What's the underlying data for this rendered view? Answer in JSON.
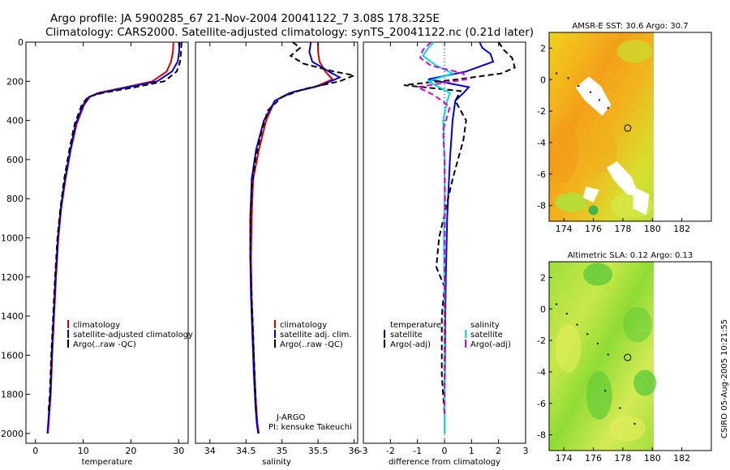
{
  "header": {
    "title_line1": "Argo profile: JA 5900285_67 21-Nov-2004 20041122_7 3.08S 178.325E",
    "title_line2": "Climatology: CARS2000. Satellite-adjusted climatology: synTS_20041122.nc (0.21d later)"
  },
  "side_label": "CSIRO 05-Aug-2005 10:21:55",
  "colors": {
    "climatology": "#dd0000",
    "satellite": "#0000dd",
    "argo": "#000000",
    "salinity_sat": "#00dddd",
    "salinity_argo": "#dd00dd",
    "land": "#ffffff"
  },
  "chart_data": [
    {
      "id": "temperature",
      "type": "line",
      "xlabel": "temperature",
      "ylabel": "",
      "xlim": [
        -2,
        32
      ],
      "ylim": [
        0,
        2050
      ],
      "y_inverted": true,
      "xticks": [
        0,
        10,
        20,
        30
      ],
      "xtick_labels": [
        "0",
        "10",
        "20",
        "30"
      ],
      "yticks": [
        0,
        200,
        400,
        600,
        800,
        1000,
        1200,
        1400,
        1600,
        1800,
        2000
      ],
      "ytick_labels": [
        "0",
        "200",
        "400",
        "600",
        "800",
        "1000",
        "1200",
        "1400",
        "1600",
        "1800",
        "2000"
      ],
      "legend": {
        "position": "bottom-center",
        "entries": [
          "climatology",
          "satellite-adjusted climatology",
          "Argo(..raw -QC)"
        ]
      },
      "series": [
        {
          "name": "climatology",
          "color": "#dd0000",
          "dash": "",
          "x": [
            28.9,
            28.8,
            28.4,
            27.5,
            24.5,
            19.0,
            13.0,
            11.4,
            10.2,
            8.6,
            7.4,
            6.3,
            5.4,
            4.8,
            4.3,
            3.9,
            3.5,
            3.2,
            2.9,
            2.6
          ],
          "y": [
            0,
            50,
            100,
            150,
            200,
            230,
            260,
            280,
            320,
            420,
            550,
            700,
            850,
            1000,
            1200,
            1400,
            1600,
            1800,
            1900,
            2000
          ]
        },
        {
          "name": "satellite-adjusted climatology",
          "color": "#0000dd",
          "dash": "",
          "x": [
            30.2,
            30.1,
            29.8,
            28.6,
            25.5,
            19.5,
            13.5,
            11.2,
            10.0,
            8.4,
            7.3,
            6.2,
            5.3,
            4.7,
            4.2,
            3.8,
            3.4,
            3.1,
            2.8,
            2.5
          ],
          "y": [
            0,
            50,
            100,
            150,
            200,
            230,
            260,
            280,
            320,
            420,
            550,
            700,
            850,
            1000,
            1200,
            1400,
            1600,
            1800,
            1900,
            2000
          ]
        },
        {
          "name": "Argo(..raw -QC)",
          "color": "#000000",
          "dash": "7,4",
          "x": [
            30.6,
            30.5,
            30.3,
            29.6,
            27.0,
            21.0,
            14.0,
            11.0,
            9.7,
            8.2,
            7.1,
            6.0,
            5.2,
            4.6,
            4.1,
            3.7,
            3.3,
            3.0,
            2.7
          ],
          "y": [
            0,
            50,
            100,
            150,
            200,
            230,
            260,
            280,
            320,
            420,
            550,
            700,
            850,
            1000,
            1200,
            1400,
            1600,
            1800,
            1900
          ]
        }
      ]
    },
    {
      "id": "salinity",
      "type": "line",
      "xlabel": "salinity",
      "xlim": [
        33.8,
        36.05
      ],
      "ylim": [
        0,
        2050
      ],
      "y_inverted": true,
      "xticks": [
        34,
        34.5,
        35,
        35.5,
        36
      ],
      "xtick_labels": [
        "34",
        "34.5",
        "35",
        "35.5",
        "36"
      ],
      "legend": {
        "position": "bottom-center",
        "entries": [
          "climatology",
          "satellite adj. clim.",
          "Argo(..raw -QC)"
        ]
      },
      "annotation": [
        "J-ARGO",
        "PI: kensuke Takeuchi"
      ],
      "series": [
        {
          "name": "climatology",
          "color": "#dd0000",
          "dash": "",
          "x": [
            35.5,
            35.5,
            35.52,
            35.6,
            35.7,
            35.45,
            35.1,
            34.9,
            34.78,
            34.68,
            34.6,
            34.58,
            34.57,
            34.58,
            34.6,
            34.62,
            34.64,
            34.66,
            34.68
          ],
          "y": [
            0,
            50,
            100,
            150,
            190,
            230,
            260,
            300,
            400,
            550,
            700,
            900,
            1100,
            1300,
            1500,
            1700,
            1850,
            1950,
            2000
          ]
        },
        {
          "name": "satellite adj. clim.",
          "color": "#0000dd",
          "dash": "",
          "x": [
            35.4,
            35.38,
            35.42,
            35.65,
            35.8,
            35.55,
            35.15,
            34.9,
            34.75,
            34.64,
            34.58,
            34.56,
            34.56,
            34.57,
            34.59,
            34.61,
            34.63,
            34.65,
            34.67
          ],
          "y": [
            0,
            50,
            100,
            150,
            180,
            220,
            255,
            300,
            400,
            550,
            700,
            900,
            1100,
            1300,
            1500,
            1700,
            1850,
            1950,
            2000
          ]
        },
        {
          "name": "Argo(..raw -QC)",
          "color": "#000000",
          "dash": "7,4",
          "x": [
            35.15,
            35.25,
            35.12,
            35.3,
            35.72,
            36.0,
            35.8,
            35.3,
            35.0,
            34.8,
            34.72,
            34.63,
            34.58,
            34.56,
            34.56,
            34.58,
            34.6,
            34.62,
            34.64
          ],
          "y": [
            0,
            30,
            70,
            110,
            150,
            170,
            200,
            240,
            280,
            350,
            450,
            600,
            750,
            900,
            1100,
            1300,
            1500,
            1700,
            1900
          ]
        }
      ]
    },
    {
      "id": "difference",
      "type": "line",
      "xlabel": "difference from climatology",
      "xlim": [
        -3,
        3
      ],
      "ylim": [
        0,
        2050
      ],
      "y_inverted": true,
      "xticks": [
        -3,
        -2,
        -1,
        0,
        1,
        2,
        3
      ],
      "xtick_labels": [
        "-3",
        "-2",
        "-1",
        "0",
        "1",
        "2",
        "3"
      ],
      "legend": {
        "position": "bottom",
        "left_title": "temperature",
        "right_title": "salinity",
        "left_entries": [
          "satellite",
          "Argo(-adj)"
        ],
        "right_entries": [
          "satellite",
          "Argo(-adj)"
        ]
      },
      "series": [
        {
          "name": "temperature satellite",
          "color": "#0000dd",
          "dash": "",
          "x": [
            1.3,
            1.4,
            1.7,
            1.8,
            0.8,
            -0.6,
            0.9,
            0.7,
            0.4,
            0.3,
            0.2,
            0.1,
            0.05,
            0.03,
            0.02,
            0,
            0,
            0
          ],
          "y": [
            0,
            30,
            60,
            100,
            150,
            190,
            230,
            260,
            300,
            400,
            600,
            900,
            1200,
            1400,
            1600,
            1800,
            1900,
            2000
          ]
        },
        {
          "name": "temperature Argo(-adj)",
          "color": "#000000",
          "dash": "7,4",
          "x": [
            2.0,
            2.2,
            2.5,
            2.6,
            2.1,
            0.5,
            -1.5,
            0.6,
            0.4,
            0.8,
            0.7,
            0.3,
            -0.2,
            -0.3,
            0.0,
            -0.1,
            -0.1,
            0.0
          ],
          "y": [
            0,
            40,
            80,
            130,
            160,
            190,
            220,
            250,
            300,
            400,
            500,
            700,
            1000,
            1150,
            1250,
            1400,
            1700,
            1900
          ]
        },
        {
          "name": "salinity satellite",
          "color": "#00dddd",
          "dash": "",
          "x": [
            -0.4,
            -0.6,
            -0.8,
            -0.3,
            0.3,
            -0.6,
            0.2,
            0.1,
            -0.05,
            0,
            0,
            -0.02,
            0,
            0,
            0
          ],
          "y": [
            0,
            30,
            70,
            120,
            160,
            200,
            260,
            300,
            400,
            600,
            800,
            1000,
            1400,
            1800,
            2000
          ]
        },
        {
          "name": "salinity Argo(-adj)",
          "color": "#dd00dd",
          "dash": "7,4",
          "x": [
            -0.5,
            -0.8,
            -0.9,
            -0.5,
            0.7,
            0.8,
            -1.0,
            -0.4,
            0.2,
            -0.05,
            0,
            0.02,
            0,
            0,
            0
          ],
          "y": [
            0,
            40,
            80,
            120,
            160,
            190,
            230,
            270,
            330,
            450,
            600,
            800,
            1100,
            1500,
            1900
          ]
        }
      ]
    },
    {
      "id": "sst_map",
      "type": "heatmap",
      "title": "AMSR-E SST: 30.6 Argo: 30.7",
      "xlim": [
        173,
        184
      ],
      "ylim": [
        -9,
        3
      ],
      "xticks": [
        174,
        176,
        178,
        180,
        182
      ],
      "xtick_labels": [
        "174",
        "176",
        "178",
        "180",
        "182"
      ],
      "yticks": [
        2,
        0,
        -2,
        -4,
        -6,
        -8
      ],
      "ytick_labels": [
        "2",
        "0",
        "-2",
        "-4",
        "-6",
        "-8"
      ],
      "data_xmax": 180.1,
      "float_position": [
        178.325,
        -3.08
      ],
      "land_patches": [
        [
          [
            175.7,
            0.2
          ],
          [
            176.5,
            -0.4
          ],
          [
            177.2,
            -1.6
          ],
          [
            176.6,
            -2.3
          ],
          [
            175.4,
            -1.3
          ],
          [
            174.8,
            -0.5
          ]
        ],
        [
          [
            177.6,
            -5.2
          ],
          [
            178.6,
            -6.2
          ],
          [
            179.1,
            -7.4
          ],
          [
            178.3,
            -7.3
          ],
          [
            177.4,
            -6.4
          ],
          [
            176.9,
            -5.6
          ]
        ],
        [
          [
            175.5,
            -6.8
          ],
          [
            176.4,
            -7.0
          ],
          [
            176.0,
            -7.8
          ],
          [
            175.3,
            -7.5
          ]
        ],
        [
          [
            178.7,
            -6.8
          ],
          [
            179.8,
            -7.3
          ],
          [
            179.6,
            -8.6
          ],
          [
            178.7,
            -8.2
          ]
        ]
      ],
      "trajectory": [
        [
          173.5,
          0.4
        ],
        [
          174.3,
          0.1
        ],
        [
          175.0,
          -0.4
        ],
        [
          175.8,
          -0.8
        ],
        [
          176.4,
          -1.3
        ],
        [
          177.0,
          -1.8
        ]
      ]
    },
    {
      "id": "sla_map",
      "type": "heatmap",
      "title": "Altimetric SLA: 0.12 Argo: 0.13",
      "xlim": [
        173,
        184
      ],
      "ylim": [
        -9,
        3
      ],
      "xticks": [
        174,
        176,
        178,
        180,
        182
      ],
      "xtick_labels": [
        "174",
        "176",
        "178",
        "180",
        "182"
      ],
      "yticks": [
        2,
        0,
        -2,
        -4,
        -6,
        -8
      ],
      "ytick_labels": [
        "2",
        "0",
        "-2",
        "-4",
        "-6",
        "-8"
      ],
      "data_xmax": 180.1,
      "float_position": [
        178.325,
        -3.08
      ],
      "trajectory": [
        [
          173.5,
          0.3
        ],
        [
          174.2,
          -0.3
        ],
        [
          174.9,
          -1.0
        ],
        [
          175.6,
          -1.6
        ],
        [
          176.3,
          -2.2
        ],
        [
          177.0,
          -2.9
        ],
        [
          176.8,
          -5.2
        ],
        [
          177.8,
          -6.3
        ],
        [
          178.8,
          -7.3
        ]
      ]
    }
  ]
}
